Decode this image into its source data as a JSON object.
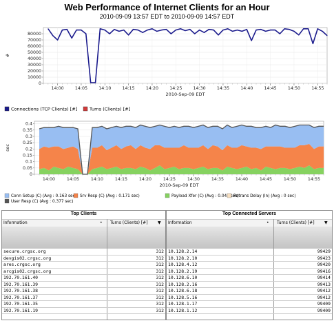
{
  "page": {
    "title": "Web Performance of Internet Clients for an Hour",
    "subtitle": "2010-09-09 13:57 EDT to 2010-09-09 14:57 EDT"
  },
  "chart_data": [
    {
      "type": "line",
      "ylabel": "#",
      "xlabel": "2010-Sep-09 EDT",
      "ylim": [
        0,
        90000
      ],
      "yticks": [
        "0",
        "10000",
        "20000",
        "30000",
        "40000",
        "50000",
        "60000",
        "70000",
        "80000"
      ],
      "xticks": [
        "14:00",
        "14:05",
        "14:10",
        "14:15",
        "14:20",
        "14:25",
        "14:30",
        "14:35",
        "14:40",
        "14:45",
        "14:50",
        "14:55"
      ],
      "legend": [
        "Connections (TCP Clients) [#]",
        "Turns (Clients) [#]"
      ],
      "colors": {
        "Connections (TCP Clients) [#]": "#1a1a8c",
        "Turns (Clients) [#]": "#d33a3a"
      },
      "x": [
        "13:58",
        "13:59",
        "14:00",
        "14:01",
        "14:02",
        "14:03",
        "14:04",
        "14:05",
        "14:06",
        "14:07",
        "14:08",
        "14:09",
        "14:10",
        "14:11",
        "14:12",
        "14:13",
        "14:14",
        "14:15",
        "14:16",
        "14:17",
        "14:18",
        "14:19",
        "14:20",
        "14:21",
        "14:22",
        "14:23",
        "14:24",
        "14:25",
        "14:26",
        "14:27",
        "14:28",
        "14:29",
        "14:30",
        "14:31",
        "14:32",
        "14:33",
        "14:34",
        "14:35",
        "14:36",
        "14:37",
        "14:38",
        "14:39",
        "14:40",
        "14:41",
        "14:42",
        "14:43",
        "14:44",
        "14:45",
        "14:46",
        "14:47",
        "14:48",
        "14:49",
        "14:50",
        "14:51",
        "14:52",
        "14:53",
        "14:54",
        "14:55",
        "14:56",
        "14:57"
      ],
      "series": [
        {
          "name": "Connections (TCP Clients) [#]",
          "values": [
            88000,
            77000,
            70000,
            86000,
            87000,
            73000,
            86000,
            86000,
            80000,
            1000,
            1000,
            88000,
            86000,
            80000,
            87000,
            84000,
            86000,
            78000,
            87000,
            86000,
            82000,
            86000,
            88000,
            84000,
            86000,
            87000,
            80000,
            86000,
            88000,
            85000,
            87000,
            80000,
            86000,
            82000,
            87000,
            86000,
            78000,
            86000,
            88000,
            84000,
            86000,
            84000,
            87000,
            69000,
            86000,
            87000,
            84000,
            86000,
            86000,
            80000,
            88000,
            87000,
            84000,
            78000,
            88000,
            88000,
            64000,
            88000,
            84000,
            77000
          ]
        }
      ]
    },
    {
      "type": "area",
      "ylabel": "sec",
      "xlabel": "2010-Sep-09 EDT",
      "ylim": [
        0,
        0.42
      ],
      "yticks": [
        "0",
        "0.05",
        "0.1",
        "0.15",
        "0.2",
        "0.25",
        "0.3",
        "0.35",
        "0.4"
      ],
      "xticks": [
        "14:00",
        "14:05",
        "14:10",
        "14:15",
        "14:20",
        "14:25",
        "14:30",
        "14:35",
        "14:40",
        "14:45",
        "14:50",
        "14:55"
      ],
      "legend": [
        "Conn Setup (C) (Avg : 0.163 sec)",
        "Srv Resp (C) (Avg : 0.171 sec)",
        "Payload Xfer (C) (Avg : 0.043 sec)",
        "Retrans Delay (In) (Avg : 0 sec)",
        "User Resp (C) (Avg : 0.377 sec)"
      ],
      "colors": {
        "Conn Setup (C) (Avg : 0.163 sec)": "#98bef2",
        "Srv Resp (C) (Avg : 0.171 sec)": "#f5844a",
        "Payload Xfer (C) (Avg : 0.043 sec)": "#86d260",
        "Retrans Delay (In) (Avg : 0 sec)": "#f7dfc0",
        "User Resp (C) (Avg : 0.377 sec)": "#555555"
      },
      "x": [
        "13:58",
        "13:59",
        "14:00",
        "14:01",
        "14:02",
        "14:03",
        "14:04",
        "14:05",
        "14:06",
        "14:07",
        "14:08",
        "14:09",
        "14:10",
        "14:11",
        "14:12",
        "14:13",
        "14:14",
        "14:15",
        "14:16",
        "14:17",
        "14:18",
        "14:19",
        "14:20",
        "14:21",
        "14:22",
        "14:23",
        "14:24",
        "14:25",
        "14:26",
        "14:27",
        "14:28",
        "14:29",
        "14:30",
        "14:31",
        "14:32",
        "14:33",
        "14:34",
        "14:35",
        "14:36",
        "14:37",
        "14:38",
        "14:39",
        "14:40",
        "14:41",
        "14:42",
        "14:43",
        "14:44",
        "14:45",
        "14:46",
        "14:47",
        "14:48",
        "14:49",
        "14:50",
        "14:51",
        "14:52",
        "14:53",
        "14:54",
        "14:55",
        "14:56",
        "14:57"
      ],
      "series": [
        {
          "name": "Payload Xfer (C) (Avg : 0.043 sec)",
          "values": [
            0.04,
            0.05,
            0.03,
            0.06,
            0.05,
            0.04,
            0.06,
            0.05,
            0.04,
            0.0,
            0.0,
            0.04,
            0.05,
            0.06,
            0.04,
            0.05,
            0.06,
            0.04,
            0.05,
            0.05,
            0.04,
            0.06,
            0.05,
            0.03,
            0.05,
            0.07,
            0.04,
            0.05,
            0.06,
            0.04,
            0.05,
            0.05,
            0.04,
            0.05,
            0.06,
            0.04,
            0.05,
            0.05,
            0.03,
            0.06,
            0.05,
            0.04,
            0.05,
            0.06,
            0.04,
            0.05,
            0.03,
            0.06,
            0.05,
            0.04,
            0.05,
            0.05,
            0.04,
            0.05,
            0.06,
            0.05,
            0.07,
            0.04,
            0.05,
            0.05
          ]
        },
        {
          "name": "Srv Resp (C) (Avg : 0.171 sec)",
          "values": [
            0.16,
            0.17,
            0.18,
            0.16,
            0.17,
            0.16,
            0.15,
            0.17,
            0.16,
            0.0,
            0.0,
            0.17,
            0.16,
            0.17,
            0.15,
            0.16,
            0.17,
            0.16,
            0.17,
            0.18,
            0.16,
            0.17,
            0.16,
            0.17,
            0.18,
            0.16,
            0.17,
            0.16,
            0.15,
            0.17,
            0.18,
            0.16,
            0.17,
            0.16,
            0.17,
            0.16,
            0.18,
            0.17,
            0.16,
            0.17,
            0.16,
            0.17,
            0.18,
            0.16,
            0.17,
            0.16,
            0.17,
            0.16,
            0.17,
            0.18,
            0.17,
            0.16,
            0.17,
            0.16,
            0.17,
            0.18,
            0.17,
            0.16,
            0.17,
            0.17
          ]
        },
        {
          "name": "Conn Setup (C) (Avg : 0.163 sec)",
          "values": [
            0.16,
            0.15,
            0.16,
            0.15,
            0.16,
            0.17,
            0.16,
            0.15,
            0.16,
            0.0,
            0.0,
            0.16,
            0.16,
            0.15,
            0.17,
            0.16,
            0.15,
            0.17,
            0.16,
            0.15,
            0.17,
            0.16,
            0.17,
            0.17,
            0.15,
            0.16,
            0.17,
            0.16,
            0.17,
            0.16,
            0.15,
            0.17,
            0.16,
            0.17,
            0.16,
            0.17,
            0.15,
            0.16,
            0.17,
            0.16,
            0.16,
            0.17,
            0.16,
            0.16,
            0.17,
            0.16,
            0.17,
            0.16,
            0.15,
            0.17,
            0.16,
            0.17,
            0.16,
            0.17,
            0.16,
            0.16,
            0.15,
            0.17,
            0.16,
            0.16
          ]
        },
        {
          "name": "Retrans Delay (In) (Avg : 0 sec)",
          "values": [
            0,
            0,
            0,
            0,
            0,
            0,
            0,
            0,
            0,
            0,
            0,
            0,
            0,
            0,
            0,
            0,
            0,
            0,
            0,
            0,
            0,
            0,
            0,
            0,
            0,
            0,
            0,
            0,
            0,
            0,
            0,
            0,
            0,
            0,
            0,
            0,
            0,
            0,
            0,
            0,
            0,
            0,
            0,
            0,
            0,
            0,
            0,
            0,
            0,
            0,
            0,
            0,
            0,
            0,
            0,
            0,
            0,
            0,
            0,
            0
          ]
        }
      ]
    }
  ],
  "tables": {
    "clients": {
      "title": "Top Clients",
      "col_info": "Information",
      "col_turns": "Turns (Clients) [#]",
      "rows": [
        {
          "k": "secure.crgsc.org",
          "v": "312"
        },
        {
          "k": "devgis02.crgsc.org",
          "v": "312"
        },
        {
          "k": "ares.crgsc.org",
          "v": "312"
        },
        {
          "k": "arcgis02.crgsc.org",
          "v": "312"
        },
        {
          "k": "192.70.161.40",
          "v": "312"
        },
        {
          "k": "192.70.161.39",
          "v": "312"
        },
        {
          "k": "192.70.161.38",
          "v": "312"
        },
        {
          "k": "192.70.161.37",
          "v": "312"
        },
        {
          "k": "192.70.161.35",
          "v": "312"
        },
        {
          "k": "192.70.161.19",
          "v": "312"
        }
      ]
    },
    "servers": {
      "title": "Top Connected Servers",
      "col_info": "Information",
      "col_turns": "Turns (Clients) [#]",
      "rows": [
        {
          "k": "10.128.2.14",
          "v": "99429"
        },
        {
          "k": "10.128.2.10",
          "v": "99423"
        },
        {
          "k": "10.128.4.12",
          "v": "99420"
        },
        {
          "k": "10.128.2.19",
          "v": "99416"
        },
        {
          "k": "10.128.6.10",
          "v": "99414"
        },
        {
          "k": "10.128.2.16",
          "v": "99413"
        },
        {
          "k": "10.128.6.18",
          "v": "99412"
        },
        {
          "k": "10.128.5.16",
          "v": "99412"
        },
        {
          "k": "10.128.1.17",
          "v": "99409"
        },
        {
          "k": "10.128.1.12",
          "v": "99409"
        }
      ]
    }
  }
}
